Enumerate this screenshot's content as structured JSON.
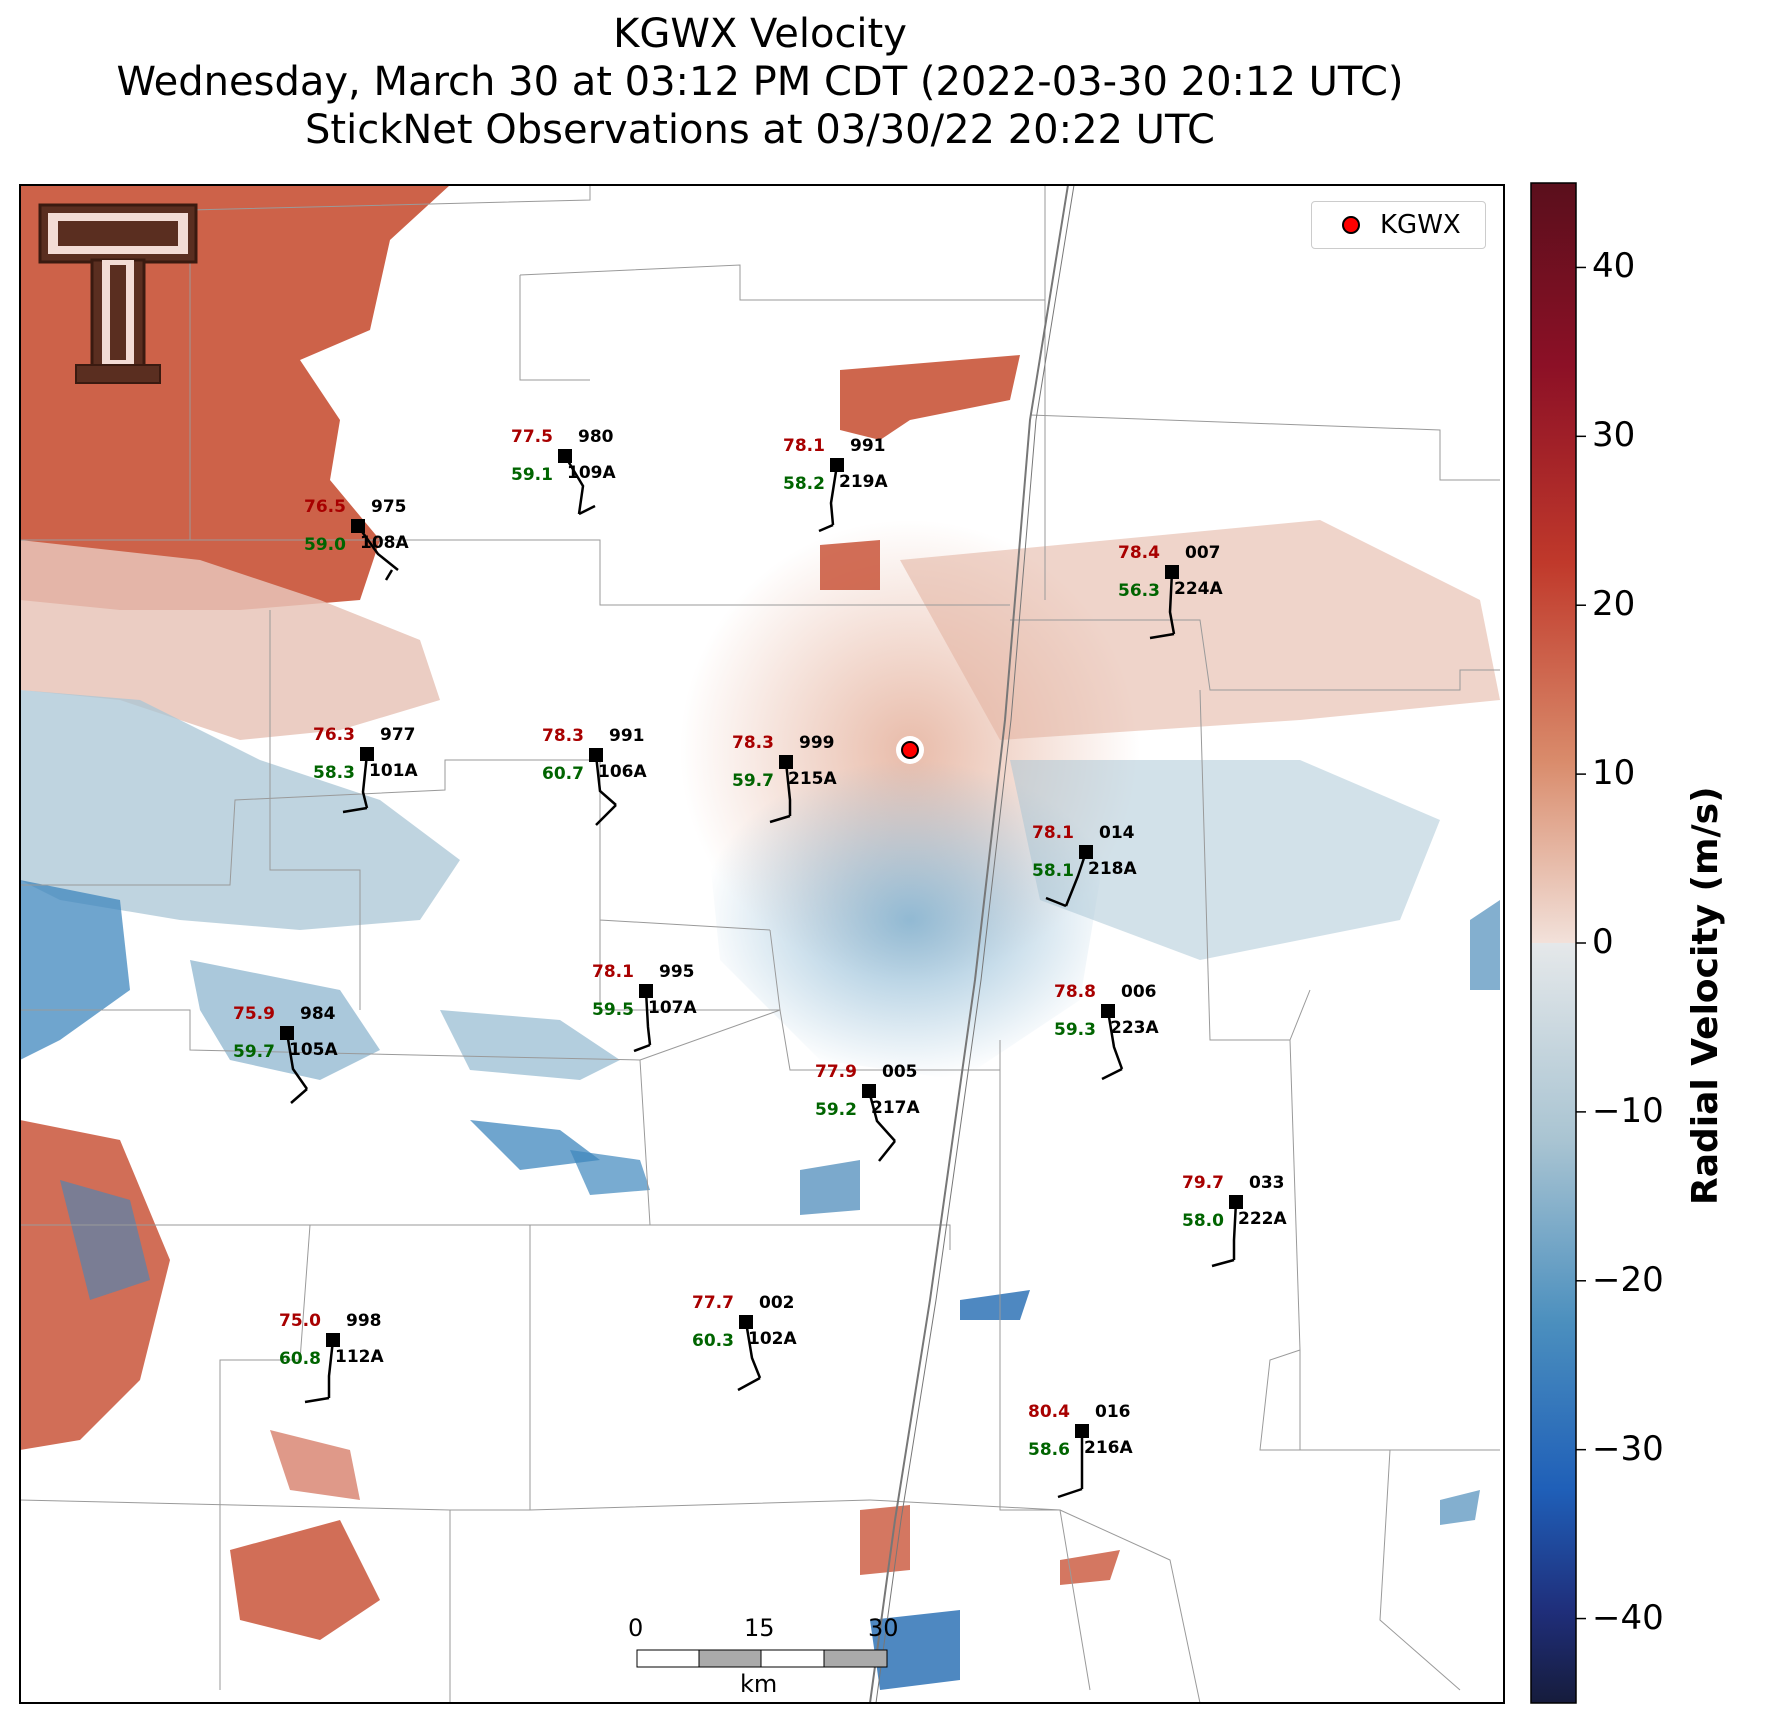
{
  "title": {
    "line1": "KGWX Velocity",
    "line2": "Wednesday, March 30 at 03:12 PM CDT (2022-03-30 20:12 UTC)",
    "line3": "StickNet Observations at 03/30/22 20:22 UTC"
  },
  "legend": {
    "label": "KGWX",
    "marker_color": "#ff0000"
  },
  "colorbar": {
    "title": "Radial Velocity (m/s)",
    "ticks": [
      "40",
      "30",
      "20",
      "10",
      "0",
      "−10",
      "−20",
      "−30",
      "−40"
    ],
    "colors": [
      "#5a0f1c",
      "#8c1026",
      "#c0392b",
      "#d98b6b",
      "#f2e1da",
      "#e5e8ea",
      "#a9c4d2",
      "#4b8fbe",
      "#1f5fb8",
      "#1f2e7a",
      "#161c3c"
    ]
  },
  "scalebar": {
    "ticks": [
      "0",
      "15",
      "30"
    ],
    "unit": "km"
  },
  "stations": [
    {
      "id": "108A",
      "temp": "76.5",
      "dew": "59.0",
      "pres": "975"
    },
    {
      "id": "109A",
      "temp": "77.5",
      "dew": "59.1",
      "pres": "980"
    },
    {
      "id": "219A",
      "temp": "78.1",
      "dew": "58.2",
      "pres": "991"
    },
    {
      "id": "224A",
      "temp": "78.4",
      "dew": "56.3",
      "pres": "007"
    },
    {
      "id": "101A",
      "temp": "76.3",
      "dew": "58.3",
      "pres": "977"
    },
    {
      "id": "106A",
      "temp": "78.3",
      "dew": "60.7",
      "pres": "991"
    },
    {
      "id": "215A",
      "temp": "78.3",
      "dew": "59.7",
      "pres": "999"
    },
    {
      "id": "218A",
      "temp": "78.1",
      "dew": "58.1",
      "pres": "014"
    },
    {
      "id": "107A",
      "temp": "78.1",
      "dew": "59.5",
      "pres": "995"
    },
    {
      "id": "105A",
      "temp": "75.9",
      "dew": "59.7",
      "pres": "984"
    },
    {
      "id": "223A",
      "temp": "78.8",
      "dew": "59.3",
      "pres": "006"
    },
    {
      "id": "217A",
      "temp": "77.9",
      "dew": "59.2",
      "pres": "005"
    },
    {
      "id": "222A",
      "temp": "79.7",
      "dew": "58.0",
      "pres": "033"
    },
    {
      "id": "112A",
      "temp": "75.0",
      "dew": "60.8",
      "pres": "998"
    },
    {
      "id": "102A",
      "temp": "77.7",
      "dew": "60.3",
      "pres": "002"
    },
    {
      "id": "216A",
      "temp": "80.4",
      "dew": "58.6",
      "pres": "016"
    }
  ]
}
